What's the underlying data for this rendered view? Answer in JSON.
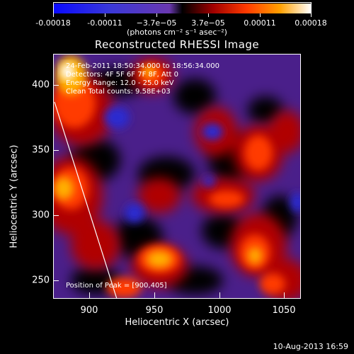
{
  "colorbar": {
    "tick_labels": [
      "-0.00018",
      "-0.00011",
      "−3.7e−05",
      "3.7e−05",
      "0.00011",
      "0.00018"
    ],
    "units": "(photons cm⁻² s⁻¹ asec⁻²)"
  },
  "title": "Reconstructed RHESSI Image",
  "annotations": {
    "time_range": "24-Feb-2011 18:50:34.000 to 18:56:34.000",
    "detectors": "Detectors: 4F 5F 6F 7F 8F, Att 0",
    "energy": "Energy Range: 12.0 - 25.0 keV",
    "method": "Clean     Total counts: 9.58E+03",
    "peak": "Position of Peak = [900,405]"
  },
  "axes": {
    "x_label": "Heliocentric X (arcsec)",
    "y_label": "Heliocentric Y (arcsec)",
    "x_ticks": [
      "900",
      "950",
      "1000",
      "1050"
    ],
    "y_ticks": [
      "400",
      "350",
      "300",
      "250"
    ]
  },
  "footer": {
    "date": "10-Aug-2013 16:59"
  }
}
